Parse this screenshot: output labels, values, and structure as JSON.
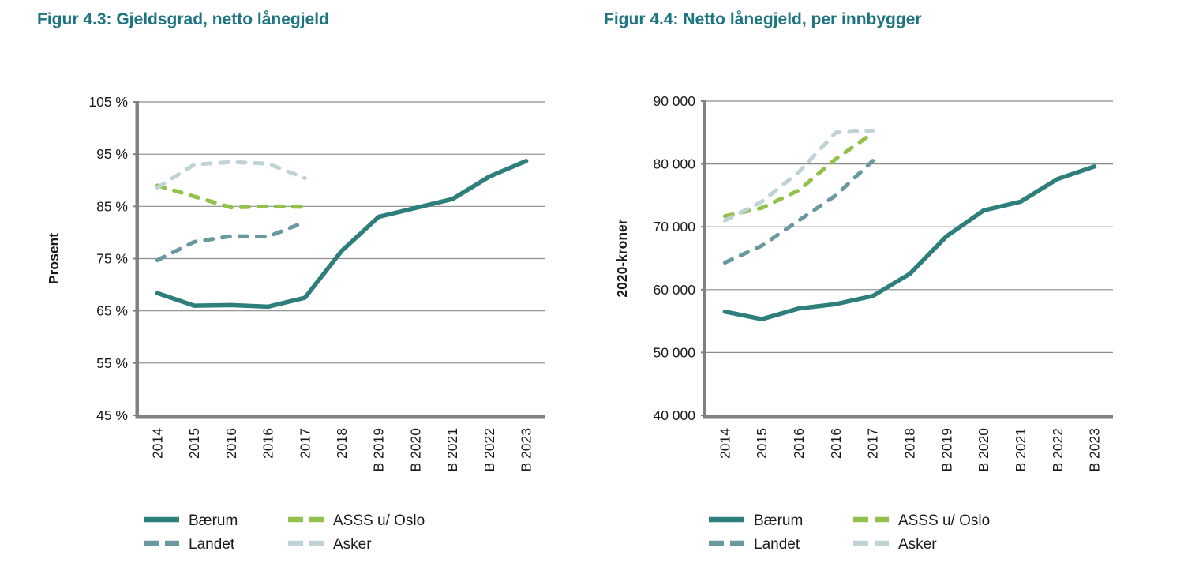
{
  "figures": {
    "left_title": "Figur 4.3: Gjeldsgrad, netto lånegjeld",
    "right_title": "Figur 4.4: Netto lånegjeld, per innbygger"
  },
  "colors": {
    "title_teal": "#1d7580",
    "baerum": "#2e7e7c",
    "landet": "#68999e",
    "asss_u_oslo": "#92c04a",
    "asker": "#bfd3d6",
    "axis_gray": "#808080",
    "gridline_gray": "#8c8c8c",
    "text_dark": "#1a1a1a"
  },
  "chart_data": [
    {
      "type": "line",
      "title": "Figur 4.3: Gjeldsgrad, netto lånegjeld",
      "xlabel": "",
      "ylabel": "Prosent",
      "categories": [
        "2014",
        "2015",
        "2016",
        "2016",
        "2017",
        "2018",
        "B 2019",
        "B 2020",
        "B 2021",
        "B 2022",
        "B 2023"
      ],
      "ylim": [
        45,
        105
      ],
      "grid": true,
      "legend_position": "bottom",
      "yticks": [
        {
          "label": "105 %",
          "value": 105
        },
        {
          "label": "95 %",
          "value": 95
        },
        {
          "label": "85 %",
          "value": 85
        },
        {
          "label": "75 %",
          "value": 75
        },
        {
          "label": "65 %",
          "value": 65
        },
        {
          "label": "55 %",
          "value": 55
        },
        {
          "label": "45 %",
          "value": 45
        }
      ],
      "series": [
        {
          "name": "Bærum",
          "style": "solid",
          "color": "#2e7e7c",
          "values": [
            68.4,
            66.0,
            66.1,
            65.8,
            67.5,
            76.5,
            83.0,
            84.7,
            86.4,
            90.7,
            93.7
          ]
        },
        {
          "name": "Landet",
          "style": "dashed",
          "color": "#68999e",
          "values": [
            74.7,
            78.2,
            79.3,
            79.2,
            82.0,
            null,
            null,
            null,
            null,
            null,
            null
          ]
        },
        {
          "name": "ASSS u/ Oslo",
          "style": "dashed",
          "color": "#92c04a",
          "values": [
            89.0,
            86.9,
            84.8,
            85.0,
            84.9,
            null,
            null,
            null,
            null,
            null,
            null
          ]
        },
        {
          "name": "Asker",
          "style": "dashed",
          "color": "#bfd3d6",
          "values": [
            88.6,
            93.0,
            93.5,
            93.2,
            90.4,
            null,
            null,
            null,
            null,
            null,
            null
          ]
        }
      ]
    },
    {
      "type": "line",
      "title": "Figur 4.4: Netto lånegjeld, per innbygger",
      "xlabel": "",
      "ylabel": "2020-kroner",
      "categories": [
        "2014",
        "2015",
        "2016",
        "2016",
        "2017",
        "2018",
        "B 2019",
        "B 2020",
        "B 2021",
        "B 2022",
        "B 2023"
      ],
      "ylim": [
        40000,
        90000
      ],
      "grid": true,
      "legend_position": "bottom",
      "yticks": [
        {
          "label": "90 000",
          "value": 90000
        },
        {
          "label": "80 000",
          "value": 80000
        },
        {
          "label": "70 000",
          "value": 70000
        },
        {
          "label": "60 000",
          "value": 60000
        },
        {
          "label": "50 000",
          "value": 50000
        },
        {
          "label": "40 000",
          "value": 40000
        }
      ],
      "series": [
        {
          "name": "Bærum",
          "style": "solid",
          "color": "#2e7e7c",
          "values": [
            56500,
            55300,
            57000,
            57700,
            59000,
            62500,
            68500,
            72600,
            74000,
            77600,
            79600
          ]
        },
        {
          "name": "Landet",
          "style": "dashed",
          "color": "#68999e",
          "values": [
            64300,
            67000,
            71000,
            75000,
            80500,
            null,
            null,
            null,
            null,
            null,
            null
          ]
        },
        {
          "name": "ASSS u/ Oslo",
          "style": "dashed",
          "color": "#92c04a",
          "values": [
            71700,
            73000,
            75800,
            80800,
            84900,
            null,
            null,
            null,
            null,
            null,
            null
          ]
        },
        {
          "name": "Asker",
          "style": "dashed",
          "color": "#bfd3d6",
          "values": [
            71000,
            74000,
            78700,
            85000,
            85300,
            null,
            null,
            null,
            null,
            null,
            null
          ]
        }
      ]
    }
  ]
}
